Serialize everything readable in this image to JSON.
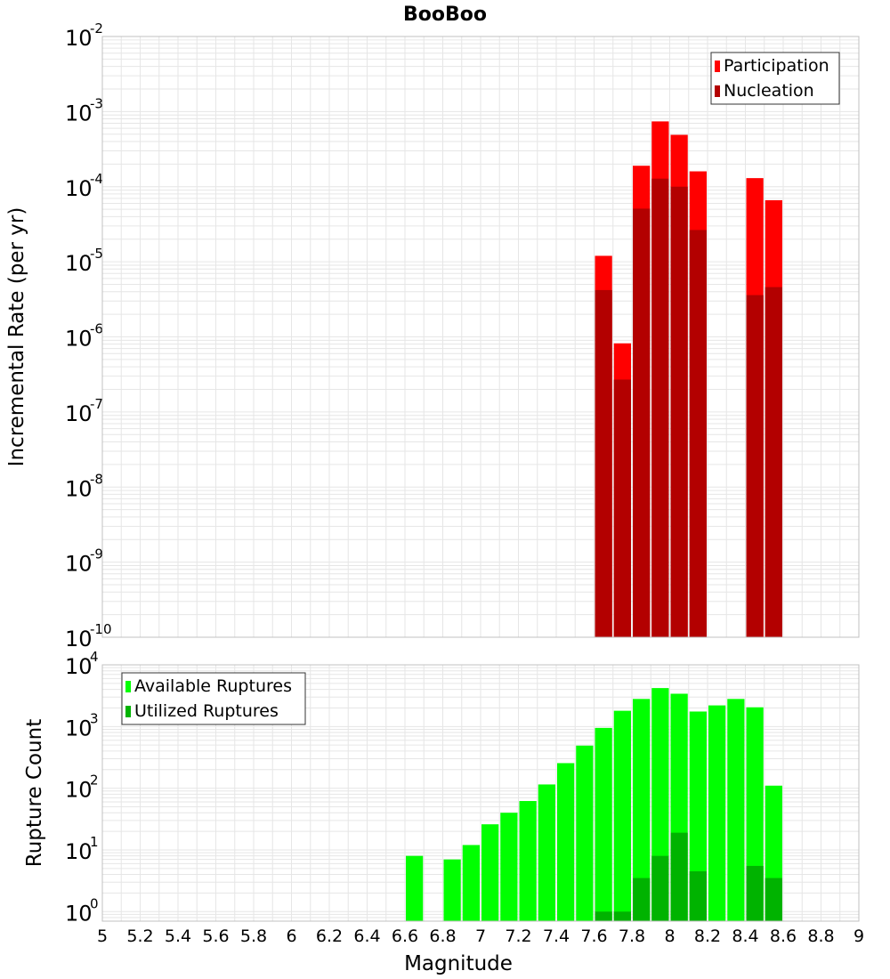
{
  "title": "BooBoo",
  "colors": {
    "participation": "#ff0000",
    "nucleation": "#b30000",
    "available": "#00ff00",
    "utilized": "#00b300",
    "grid": "#e6e6e6",
    "frame": "#c0c0c0"
  },
  "chart_data": [
    {
      "type": "bar",
      "title": "BooBoo",
      "xlabel": "",
      "ylabel": "Incremental Rate (per yr)",
      "yscale": "log",
      "xlim": [
        5,
        9
      ],
      "ylim": [
        1e-10,
        0.01
      ],
      "yticks": [
        {
          "base": "10",
          "exp": "-10"
        },
        {
          "base": "10",
          "exp": "-9"
        },
        {
          "base": "10",
          "exp": "-8"
        },
        {
          "base": "10",
          "exp": "-7"
        },
        {
          "base": "10",
          "exp": "-6"
        },
        {
          "base": "10",
          "exp": "-5"
        },
        {
          "base": "10",
          "exp": "-4"
        },
        {
          "base": "10",
          "exp": "-3"
        },
        {
          "base": "10",
          "exp": "-2"
        }
      ],
      "grid": true,
      "legend_position": "top-right",
      "x": [
        7.65,
        7.75,
        7.85,
        7.95,
        8.05,
        8.15,
        8.45,
        8.55
      ],
      "series": [
        {
          "name": "Participation",
          "values": [
            1.2e-05,
            8.2e-07,
            0.00019,
            0.00074,
            0.00049,
            0.00016,
            0.00013,
            6.6e-05
          ]
        },
        {
          "name": "Nucleation",
          "values": [
            4.2e-06,
            2.7e-07,
            5.1e-05,
            0.000128,
            0.0001,
            2.65e-05,
            3.6e-06,
            4.6e-06
          ]
        }
      ]
    },
    {
      "type": "bar",
      "xlabel": "Magnitude",
      "ylabel": "Rupture Count",
      "yscale": "log",
      "xlim": [
        5,
        9
      ],
      "ylim": [
        0.7,
        10000
      ],
      "yticks": [
        {
          "base": "10",
          "exp": "0"
        },
        {
          "base": "10",
          "exp": "1"
        },
        {
          "base": "10",
          "exp": "2"
        },
        {
          "base": "10",
          "exp": "3"
        },
        {
          "base": "10",
          "exp": "4"
        }
      ],
      "xticks": [
        "5",
        "5.2",
        "5.4",
        "5.6",
        "5.8",
        "6",
        "6.2",
        "6.4",
        "6.6",
        "6.8",
        "7",
        "7.2",
        "7.4",
        "7.6",
        "7.8",
        "8",
        "8.2",
        "8.4",
        "8.6",
        "8.8",
        "9"
      ],
      "grid": true,
      "legend_position": "top-left",
      "x": [
        6.65,
        6.85,
        6.95,
        7.05,
        7.15,
        7.25,
        7.35,
        7.45,
        7.55,
        7.65,
        7.75,
        7.85,
        7.95,
        8.05,
        8.15,
        8.25,
        8.35,
        8.45,
        8.55
      ],
      "series": [
        {
          "name": "Available Ruptures",
          "values": [
            8,
            7,
            12,
            26,
            40,
            62,
            115,
            255,
            490,
            950,
            1800,
            2800,
            4200,
            3400,
            1750,
            2200,
            2800,
            2050,
            110
          ]
        },
        {
          "name": "Utilized Ruptures",
          "values": [
            0,
            0,
            0,
            0,
            0,
            0,
            0,
            0,
            0,
            1,
            1,
            3.5,
            8,
            19,
            4.5,
            0,
            0,
            5.5,
            3.5
          ]
        }
      ]
    }
  ]
}
